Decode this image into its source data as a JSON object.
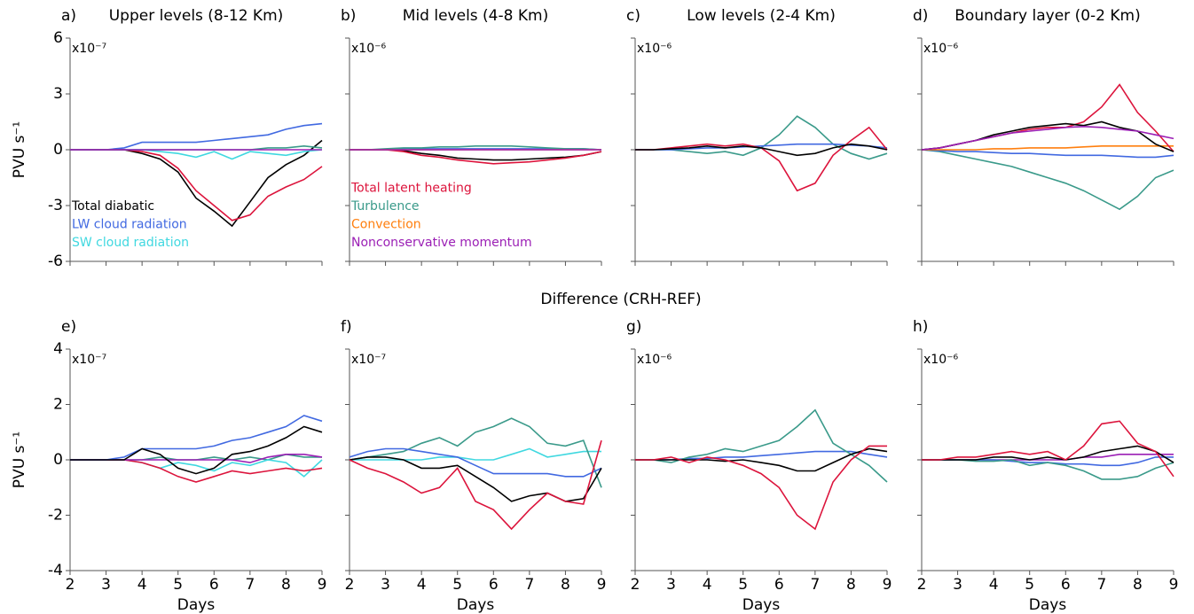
{
  "section_label": "Difference (CRH-REF)",
  "chart_data": [
    {
      "type": "line",
      "panel": "a)",
      "title": "Upper levels (8-12 Km)",
      "scale_label": "x10⁻⁷",
      "ylabel": "PVU s⁻¹",
      "legend": "lower left",
      "x": [
        2,
        2.5,
        3,
        3.5,
        4,
        4.5,
        5,
        5.5,
        6,
        6.5,
        7,
        7.5,
        8,
        8.5,
        9
      ],
      "xlim": [
        2,
        9
      ],
      "xticks": [
        2,
        3,
        4,
        5,
        6,
        7,
        8,
        9
      ],
      "ylim": [
        -6,
        6
      ],
      "yticks": [
        -6,
        -3,
        0,
        3,
        6
      ],
      "series": [
        {
          "name": "Total diabatic",
          "color": "#000000",
          "values": [
            0,
            0,
            0,
            0,
            -0.2,
            -0.5,
            -1.2,
            -2.6,
            -3.3,
            -4.1,
            -2.8,
            -1.5,
            -0.8,
            -0.3,
            0.5
          ]
        },
        {
          "name": "LW cloud radiation",
          "color": "#4169e1",
          "values": [
            0,
            0,
            0,
            0.1,
            0.4,
            0.4,
            0.4,
            0.4,
            0.5,
            0.6,
            0.7,
            0.8,
            1.1,
            1.3,
            1.4
          ]
        },
        {
          "name": "SW cloud radiation",
          "color": "#40d8e0",
          "values": [
            0,
            0,
            0,
            0,
            0,
            -0.1,
            -0.2,
            -0.4,
            -0.1,
            -0.5,
            -0.1,
            -0.2,
            -0.3,
            -0.1,
            0
          ]
        },
        {
          "color": "#dc143c",
          "values": [
            0,
            0,
            0,
            0,
            -0.1,
            -0.3,
            -1.0,
            -2.2,
            -3.0,
            -3.8,
            -3.5,
            -2.5,
            -2.0,
            -1.6,
            -0.9
          ]
        },
        {
          "color": "#3a9a8a",
          "values": [
            0,
            0,
            0,
            0,
            0,
            0,
            0,
            0,
            0,
            0,
            0,
            0.1,
            0.1,
            0.2,
            0.1
          ]
        },
        {
          "color": "#9b1fb5",
          "values": [
            0,
            0,
            0,
            0,
            0,
            0,
            0,
            0,
            0,
            0,
            0,
            0,
            0,
            0,
            0
          ]
        }
      ]
    },
    {
      "type": "line",
      "panel": "b)",
      "title": "Mid levels (4-8 Km)",
      "scale_label": "x10⁻⁶",
      "legend": "lower left",
      "x": [
        2,
        2.5,
        3,
        3.5,
        4,
        4.5,
        5,
        5.5,
        6,
        6.5,
        7,
        7.5,
        8,
        8.5,
        9
      ],
      "xlim": [
        2,
        9
      ],
      "xticks": [
        2,
        3,
        4,
        5,
        6,
        7,
        8,
        9
      ],
      "ylim": [
        -6,
        6
      ],
      "yticks": [
        -6,
        -3,
        0,
        3,
        6
      ],
      "series": [
        {
          "color": "#000000",
          "values": [
            0,
            0,
            0,
            -0.05,
            -0.2,
            -0.3,
            -0.45,
            -0.5,
            -0.55,
            -0.55,
            -0.5,
            -0.45,
            -0.4,
            -0.3,
            -0.1
          ]
        },
        {
          "color": "#4169e1",
          "values": [
            0,
            0,
            0,
            0.05,
            0.05,
            0.05,
            0.05,
            0.05,
            0.05,
            0.05,
            0.05,
            0.05,
            0.05,
            0.05,
            0
          ]
        },
        {
          "name": "Total latent heating",
          "color": "#dc143c",
          "values": [
            0,
            0,
            0,
            -0.1,
            -0.3,
            -0.4,
            -0.55,
            -0.65,
            -0.75,
            -0.7,
            -0.65,
            -0.55,
            -0.45,
            -0.3,
            -0.1
          ]
        },
        {
          "name": "Turbulence",
          "color": "#3a9a8a",
          "values": [
            0,
            0,
            0.05,
            0.1,
            0.1,
            0.15,
            0.15,
            0.2,
            0.2,
            0.2,
            0.15,
            0.1,
            0.05,
            0.05,
            0
          ]
        },
        {
          "name": "Convection",
          "color": "#ff7f0e",
          "values": [
            0,
            0,
            0,
            0,
            0,
            0,
            0,
            0,
            0,
            0,
            0,
            0,
            0,
            0,
            0
          ]
        },
        {
          "name": "Nonconservative momentum",
          "color": "#9b1fb5",
          "values": [
            0,
            0,
            0,
            0,
            0,
            0,
            0,
            0,
            0,
            0,
            0,
            0,
            0,
            0,
            0
          ]
        }
      ]
    },
    {
      "type": "line",
      "panel": "c)",
      "title": "Low levels (2-4 Km)",
      "scale_label": "x10⁻⁶",
      "x": [
        2,
        2.5,
        3,
        3.5,
        4,
        4.5,
        5,
        5.5,
        6,
        6.5,
        7,
        7.5,
        8,
        8.5,
        9
      ],
      "xlim": [
        2,
        9
      ],
      "xticks": [
        2,
        3,
        4,
        5,
        6,
        7,
        8,
        9
      ],
      "ylim": [
        -6,
        6
      ],
      "yticks": [
        -6,
        -3,
        0,
        3,
        6
      ],
      "series": [
        {
          "color": "#3a9a8a",
          "values": [
            0,
            0,
            0,
            -0.1,
            -0.2,
            -0.1,
            -0.3,
            0.1,
            0.8,
            1.8,
            1.2,
            0.3,
            -0.2,
            -0.5,
            -0.2
          ]
        },
        {
          "color": "#4169e1",
          "values": [
            0,
            0,
            0,
            0.05,
            0.1,
            0.1,
            0.15,
            0.2,
            0.25,
            0.3,
            0.3,
            0.3,
            0.25,
            0.2,
            0.1
          ]
        },
        {
          "color": "#dc143c",
          "values": [
            0,
            0,
            0.1,
            0.2,
            0.3,
            0.2,
            0.3,
            0.1,
            -0.6,
            -2.2,
            -1.8,
            -0.3,
            0.5,
            1.2,
            0
          ]
        },
        {
          "color": "#000000",
          "values": [
            0,
            0,
            0.05,
            0.1,
            0.2,
            0.1,
            0.2,
            0.1,
            -0.1,
            -0.3,
            -0.2,
            0.1,
            0.3,
            0.2,
            0
          ]
        }
      ]
    },
    {
      "type": "line",
      "panel": "d)",
      "title": "Boundary layer (0-2 Km)",
      "scale_label": "x10⁻⁶",
      "x": [
        2,
        2.5,
        3,
        3.5,
        4,
        4.5,
        5,
        5.5,
        6,
        6.5,
        7,
        7.5,
        8,
        8.5,
        9
      ],
      "xlim": [
        2,
        9
      ],
      "xticks": [
        2,
        3,
        4,
        5,
        6,
        7,
        8,
        9
      ],
      "ylim": [
        -6,
        6
      ],
      "yticks": [
        -6,
        -3,
        0,
        3,
        6
      ],
      "series": [
        {
          "color": "#3a9a8a",
          "values": [
            0,
            -0.1,
            -0.3,
            -0.5,
            -0.7,
            -0.9,
            -1.2,
            -1.5,
            -1.8,
            -2.2,
            -2.7,
            -3.2,
            -2.5,
            -1.5,
            -1.1
          ]
        },
        {
          "color": "#4169e1",
          "values": [
            0,
            -0.05,
            -0.1,
            -0.1,
            -0.15,
            -0.2,
            -0.2,
            -0.25,
            -0.3,
            -0.3,
            -0.3,
            -0.35,
            -0.4,
            -0.4,
            -0.3
          ]
        },
        {
          "color": "#ff7f0e",
          "values": [
            0,
            0,
            0,
            0,
            0.05,
            0.05,
            0.1,
            0.1,
            0.1,
            0.15,
            0.2,
            0.2,
            0.2,
            0.2,
            0.2
          ]
        },
        {
          "color": "#dc143c",
          "values": [
            0,
            0.1,
            0.3,
            0.5,
            0.7,
            0.9,
            1.1,
            1.2,
            1.2,
            1.5,
            2.3,
            3.5,
            2.0,
            1.0,
            -0.1
          ]
        },
        {
          "color": "#000000",
          "values": [
            0,
            0.1,
            0.3,
            0.5,
            0.8,
            1.0,
            1.2,
            1.3,
            1.4,
            1.3,
            1.5,
            1.2,
            1.0,
            0.3,
            -0.1
          ]
        },
        {
          "color": "#9b1fb5",
          "values": [
            0,
            0.1,
            0.3,
            0.5,
            0.7,
            0.9,
            1.0,
            1.1,
            1.2,
            1.25,
            1.2,
            1.1,
            1.0,
            0.8,
            0.6
          ]
        }
      ]
    },
    {
      "type": "line",
      "panel": "e)",
      "scale_label": "x10⁻⁷",
      "ylabel": "PVU s⁻¹",
      "xlabel": "Days",
      "x": [
        2,
        2.5,
        3,
        3.5,
        4,
        4.5,
        5,
        5.5,
        6,
        6.5,
        7,
        7.5,
        8,
        8.5,
        9
      ],
      "xlim": [
        2,
        9
      ],
      "xticks": [
        2,
        3,
        4,
        5,
        6,
        7,
        8,
        9
      ],
      "ylim": [
        -4,
        4
      ],
      "yticks": [
        -4,
        -2,
        0,
        2,
        4
      ],
      "series": [
        {
          "color": "#3a9a8a",
          "values": [
            0,
            0,
            0,
            0,
            0,
            0.1,
            0,
            0,
            0.1,
            0,
            0.1,
            0,
            0.2,
            0.1,
            0.1
          ]
        },
        {
          "color": "#40d8e0",
          "values": [
            0,
            0,
            0,
            0,
            -0.1,
            -0.3,
            -0.1,
            -0.2,
            -0.4,
            -0.1,
            -0.2,
            0,
            -0.1,
            -0.6,
            0
          ]
        },
        {
          "color": "#dc143c",
          "values": [
            0,
            0,
            0,
            0,
            -0.1,
            -0.3,
            -0.6,
            -0.8,
            -0.6,
            -0.4,
            -0.5,
            -0.4,
            -0.3,
            -0.4,
            -0.3
          ]
        },
        {
          "color": "#9b1fb5",
          "values": [
            0,
            0,
            0,
            0,
            0,
            0,
            0,
            0,
            0,
            0,
            -0.1,
            0.1,
            0.2,
            0.2,
            0.1
          ]
        },
        {
          "color": "#4169e1",
          "values": [
            0,
            0,
            0,
            0.1,
            0.4,
            0.4,
            0.4,
            0.4,
            0.5,
            0.7,
            0.8,
            1.0,
            1.2,
            1.6,
            1.4
          ]
        },
        {
          "color": "#000000",
          "values": [
            0,
            0,
            0,
            0,
            0.4,
            0.2,
            -0.3,
            -0.5,
            -0.3,
            0.2,
            0.3,
            0.5,
            0.8,
            1.2,
            1.0
          ]
        }
      ]
    },
    {
      "type": "line",
      "panel": "f)",
      "scale_label": "x10⁻⁷",
      "xlabel": "Days",
      "x": [
        2,
        2.5,
        3,
        3.5,
        4,
        4.5,
        5,
        5.5,
        6,
        6.5,
        7,
        7.5,
        8,
        8.5,
        9
      ],
      "xlim": [
        2,
        9
      ],
      "xticks": [
        2,
        3,
        4,
        5,
        6,
        7,
        8,
        9
      ],
      "ylim": [
        -4,
        4
      ],
      "yticks": [
        -4,
        -2,
        0,
        2,
        4
      ],
      "series": [
        {
          "color": "#40d8e0",
          "values": [
            0,
            0,
            0,
            0,
            0,
            0.1,
            0.1,
            0,
            0,
            0.2,
            0.4,
            0.1,
            0.2,
            0.3,
            0.3
          ]
        },
        {
          "color": "#3a9a8a",
          "values": [
            0,
            0.1,
            0.2,
            0.3,
            0.6,
            0.8,
            0.5,
            1.0,
            1.2,
            1.5,
            1.2,
            0.6,
            0.5,
            0.7,
            -1.0
          ]
        },
        {
          "color": "#4169e1",
          "values": [
            0.1,
            0.3,
            0.4,
            0.4,
            0.3,
            0.2,
            0.1,
            -0.2,
            -0.5,
            -0.5,
            -0.5,
            -0.5,
            -0.6,
            -0.6,
            -0.3
          ]
        },
        {
          "color": "#000000",
          "values": [
            0,
            0.1,
            0.1,
            0,
            -0.3,
            -0.3,
            -0.2,
            -0.6,
            -1.0,
            -1.5,
            -1.3,
            -1.2,
            -1.5,
            -1.4,
            -0.3
          ]
        },
        {
          "color": "#dc143c",
          "values": [
            0,
            -0.3,
            -0.5,
            -0.8,
            -1.2,
            -1.0,
            -0.3,
            -1.5,
            -1.8,
            -2.5,
            -1.8,
            -1.2,
            -1.5,
            -1.6,
            0.7
          ]
        }
      ]
    },
    {
      "type": "line",
      "panel": "g)",
      "scale_label": "x10⁻⁶",
      "xlabel": "Days",
      "x": [
        2,
        2.5,
        3,
        3.5,
        4,
        4.5,
        5,
        5.5,
        6,
        6.5,
        7,
        7.5,
        8,
        8.5,
        9
      ],
      "xlim": [
        2,
        9
      ],
      "xticks": [
        2,
        3,
        4,
        5,
        6,
        7,
        8,
        9
      ],
      "ylim": [
        -4,
        4
      ],
      "yticks": [
        -4,
        -2,
        0,
        2,
        4
      ],
      "series": [
        {
          "color": "#4169e1",
          "values": [
            0,
            0,
            0,
            0.05,
            0.05,
            0.1,
            0.1,
            0.15,
            0.2,
            0.25,
            0.3,
            0.3,
            0.3,
            0.2,
            0.1
          ]
        },
        {
          "color": "#3a9a8a",
          "values": [
            0,
            0,
            -0.1,
            0.1,
            0.2,
            0.4,
            0.3,
            0.5,
            0.7,
            1.2,
            1.8,
            0.6,
            0.2,
            -0.2,
            -0.8
          ]
        },
        {
          "color": "#000000",
          "values": [
            0,
            0,
            0,
            0,
            0,
            -0.05,
            0,
            -0.1,
            -0.2,
            -0.4,
            -0.4,
            -0.1,
            0.2,
            0.4,
            0.3
          ]
        },
        {
          "color": "#dc143c",
          "values": [
            0,
            0,
            0.1,
            -0.1,
            0.1,
            0,
            -0.2,
            -0.5,
            -1.0,
            -2.0,
            -2.5,
            -0.8,
            0,
            0.5,
            0.5
          ]
        }
      ]
    },
    {
      "type": "line",
      "panel": "h)",
      "scale_label": "x10⁻⁶",
      "xlabel": "Days",
      "x": [
        2,
        2.5,
        3,
        3.5,
        4,
        4.5,
        5,
        5.5,
        6,
        6.5,
        7,
        7.5,
        8,
        8.5,
        9
      ],
      "xlim": [
        2,
        9
      ],
      "xticks": [
        2,
        3,
        4,
        5,
        6,
        7,
        8,
        9
      ],
      "ylim": [
        -4,
        4
      ],
      "yticks": [
        -4,
        -2,
        0,
        2,
        4
      ],
      "series": [
        {
          "color": "#9b1fb5",
          "values": [
            0,
            0,
            0,
            0,
            0,
            0,
            0,
            0,
            0,
            0.1,
            0.1,
            0.2,
            0.2,
            0.2,
            0.2
          ]
        },
        {
          "color": "#4169e1",
          "values": [
            0,
            0,
            0,
            0,
            0,
            -0.05,
            -0.1,
            -0.1,
            -0.15,
            -0.15,
            -0.2,
            -0.2,
            -0.1,
            0.1,
            0.1
          ]
        },
        {
          "color": "#3a9a8a",
          "values": [
            0,
            0,
            0,
            -0.05,
            -0.05,
            0,
            -0.2,
            -0.1,
            -0.2,
            -0.4,
            -0.7,
            -0.7,
            -0.6,
            -0.3,
            -0.1
          ]
        },
        {
          "color": "#000000",
          "values": [
            0,
            0,
            0,
            0,
            0.1,
            0.1,
            0,
            0.1,
            0,
            0.1,
            0.3,
            0.4,
            0.5,
            0.3,
            -0.1
          ]
        },
        {
          "color": "#dc143c",
          "values": [
            0,
            0,
            0.1,
            0.1,
            0.2,
            0.3,
            0.2,
            0.3,
            0,
            0.5,
            1.3,
            1.4,
            0.6,
            0.3,
            -0.6
          ]
        }
      ]
    }
  ]
}
